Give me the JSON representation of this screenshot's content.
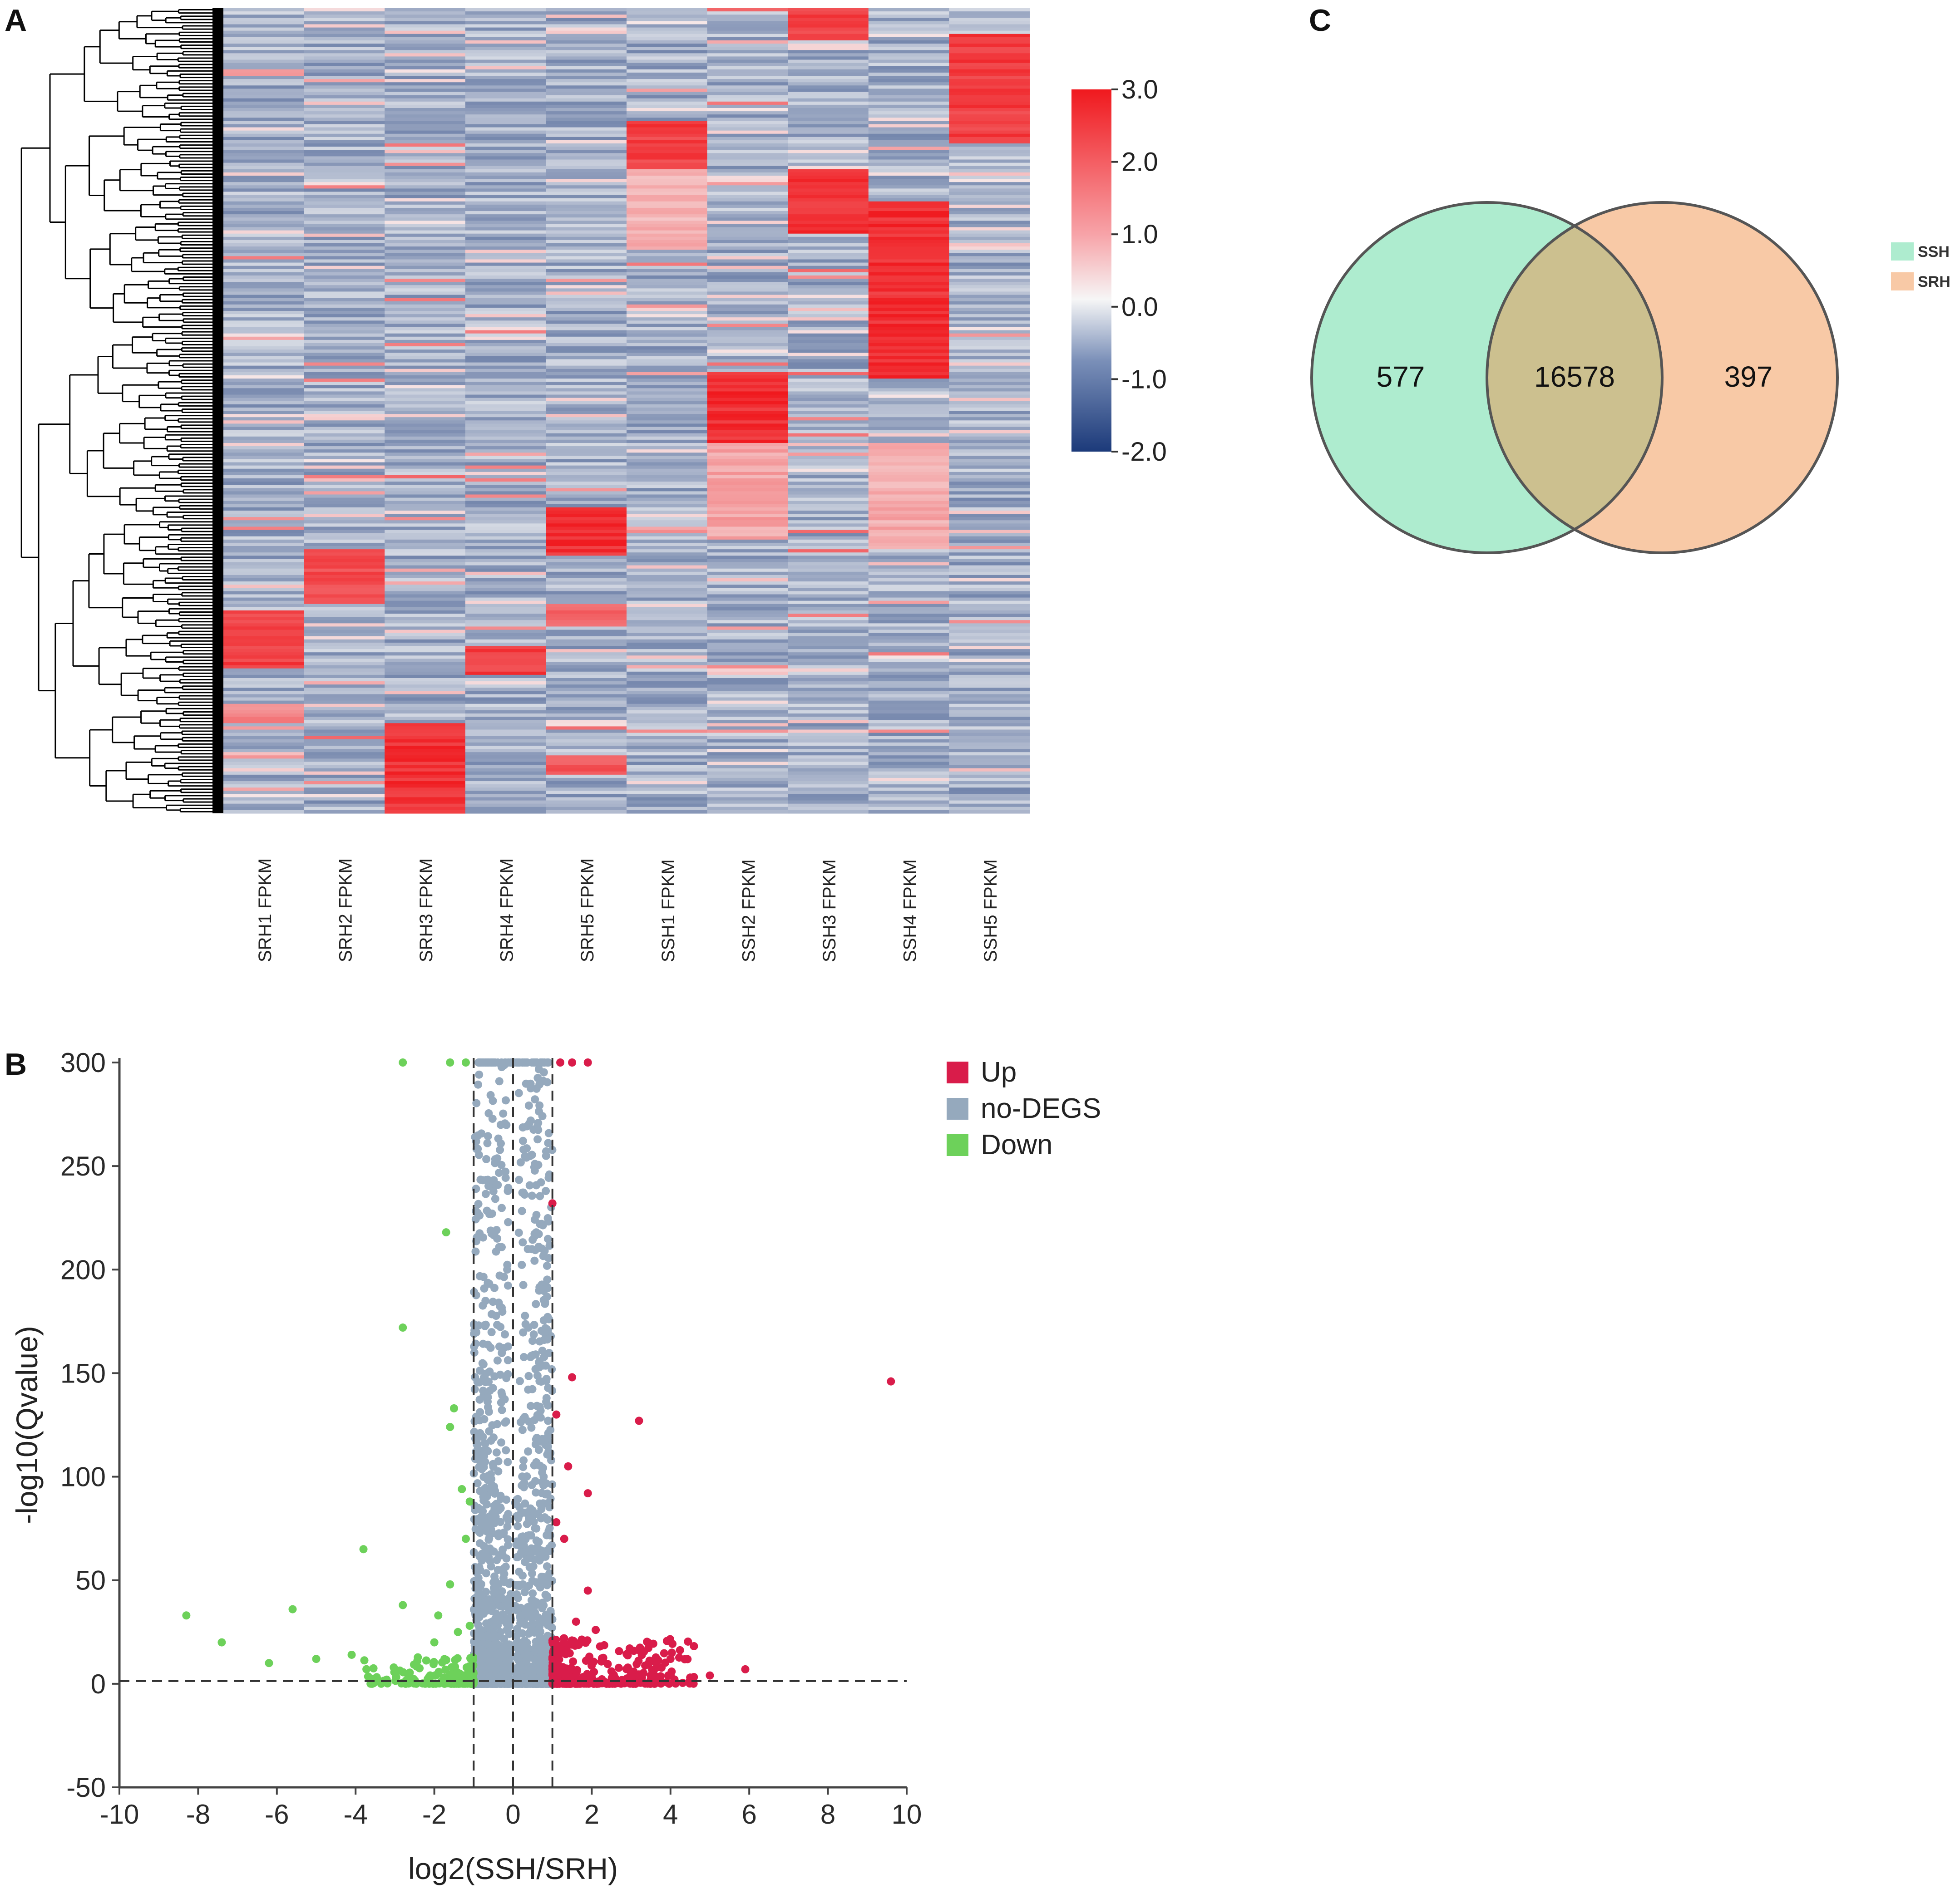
{
  "panels": {
    "a": "A",
    "b": "B",
    "c": "C"
  },
  "colors": {
    "heat_low": "#1c3a7a",
    "heat_mid": "#f6f6f6",
    "heat_high": "#f0191e",
    "up": "#d91c4a",
    "no_degs": "#95a9bd",
    "down": "#6dd15a",
    "venn_ssh": "#aeeccf",
    "venn_srh": "#f8c9a6",
    "venn_overlap": "#ccc08f"
  },
  "chart_data": [
    {
      "type": "heatmap",
      "panel": "A",
      "columns": [
        "SRH1_FPKM",
        "SRH2_FPKM",
        "SRH3_FPKM",
        "SRH4_FPKM",
        "SRH5_FPKM",
        "SSH1_FPKM",
        "SSH2_FPKM",
        "SSH3_FPKM",
        "SSH4_FPKM",
        "SSH5_FPKM"
      ],
      "rows": 250,
      "color_scale": {
        "min": -2.0,
        "max": 3.0,
        "ticks": [
          "3.0",
          "2.0",
          "1.0",
          "0.0",
          "-1.0",
          "-2.0"
        ]
      },
      "high_expression_blocks": [
        {
          "column": 0,
          "rows": [
            187,
            205
          ],
          "value": 2.8
        },
        {
          "column": 0,
          "rows": [
            216,
            222
          ],
          "value": 1.8
        },
        {
          "column": 1,
          "rows": [
            168,
            185
          ],
          "value": 2.6
        },
        {
          "column": 2,
          "rows": [
            222,
            250
          ],
          "value": 3.0
        },
        {
          "column": 3,
          "rows": [
            198,
            207
          ],
          "value": 2.8
        },
        {
          "column": 4,
          "rows": [
            155,
            170
          ],
          "value": 3.0
        },
        {
          "column": 4,
          "rows": [
            185,
            192
          ],
          "value": 2.2
        },
        {
          "column": 4,
          "rows": [
            232,
            238
          ],
          "value": 2.5
        },
        {
          "column": 5,
          "rows": [
            35,
            50
          ],
          "value": 2.8
        },
        {
          "column": 5,
          "rows": [
            50,
            75
          ],
          "value": 1.2
        },
        {
          "column": 6,
          "rows": [
            113,
            135
          ],
          "value": 3.0
        },
        {
          "column": 6,
          "rows": [
            135,
            165
          ],
          "value": 1.4
        },
        {
          "column": 7,
          "rows": [
            0,
            10
          ],
          "value": 2.8
        },
        {
          "column": 7,
          "rows": [
            50,
            70
          ],
          "value": 3.0
        },
        {
          "column": 8,
          "rows": [
            60,
            115
          ],
          "value": 3.0
        },
        {
          "column": 8,
          "rows": [
            135,
            168
          ],
          "value": 1.3
        },
        {
          "column": 9,
          "rows": [
            8,
            42
          ],
          "value": 2.8
        }
      ]
    },
    {
      "type": "scatter",
      "panel": "B",
      "xlabel": "log2(SSH/SRH)",
      "ylabel": "-log10(Qvalue)",
      "xlim": [
        -10,
        10
      ],
      "ylim": [
        -50,
        300
      ],
      "xticks": [
        "-10",
        "-8",
        "-6",
        "-4",
        "-2",
        "0",
        "2",
        "4",
        "6",
        "8",
        "10"
      ],
      "yticks": [
        "300",
        "250",
        "200",
        "150",
        "100",
        "50",
        "0",
        "-50"
      ],
      "threshold_lines": {
        "x": [
          -1,
          0,
          1
        ],
        "y": 1.3
      },
      "legend": [
        "Up",
        "no-DEGS",
        "Down"
      ],
      "series": [
        {
          "name": "Up",
          "points": [
            [
              1.2,
              300
            ],
            [
              1.5,
              300
            ],
            [
              1.9,
              300
            ],
            [
              9.6,
              146
            ],
            [
              3.2,
              127
            ],
            [
              1.5,
              148
            ],
            [
              1.1,
              130
            ],
            [
              1.4,
              105
            ],
            [
              1.0,
              232
            ],
            [
              1.9,
              92
            ],
            [
              1.1,
              78
            ],
            [
              1.3,
              70
            ],
            [
              1.9,
              45
            ],
            [
              1.6,
              30
            ],
            [
              2.1,
              26
            ],
            [
              5.9,
              7
            ],
            [
              4.0,
              12
            ],
            [
              3.5,
              4
            ],
            [
              3.0,
              5
            ],
            [
              2.5,
              6
            ],
            [
              4.5,
              3
            ],
            [
              5.0,
              4
            ],
            [
              1.3,
              20
            ],
            [
              1.2,
              18
            ]
          ]
        },
        {
          "name": "Down",
          "points": [
            [
              -2.8,
              300
            ],
            [
              -1.6,
              300
            ],
            [
              -1.2,
              300
            ],
            [
              -1.7,
              218
            ],
            [
              -2.8,
              172
            ],
            [
              -1.5,
              133
            ],
            [
              -1.6,
              124
            ],
            [
              -1.3,
              94
            ],
            [
              -1.1,
              88
            ],
            [
              -1.2,
              70
            ],
            [
              -1.6,
              48
            ],
            [
              -3.8,
              65
            ],
            [
              -8.3,
              33
            ],
            [
              -7.4,
              20
            ],
            [
              -6.2,
              10
            ],
            [
              -5.6,
              36
            ],
            [
              -5.0,
              12
            ],
            [
              -4.1,
              14
            ],
            [
              -2.8,
              38
            ],
            [
              -1.9,
              33
            ],
            [
              -2.0,
              20
            ],
            [
              -1.4,
              25
            ],
            [
              -1.1,
              28
            ]
          ]
        }
      ],
      "no_degs_range": {
        "x": [
          -1,
          1
        ],
        "y": [
          0,
          300
        ]
      }
    },
    {
      "type": "venn",
      "panel": "C",
      "sets": [
        {
          "name": "SSH",
          "only": 577
        },
        {
          "name": "SRH",
          "only": 397
        }
      ],
      "overlap": 16578
    }
  ]
}
